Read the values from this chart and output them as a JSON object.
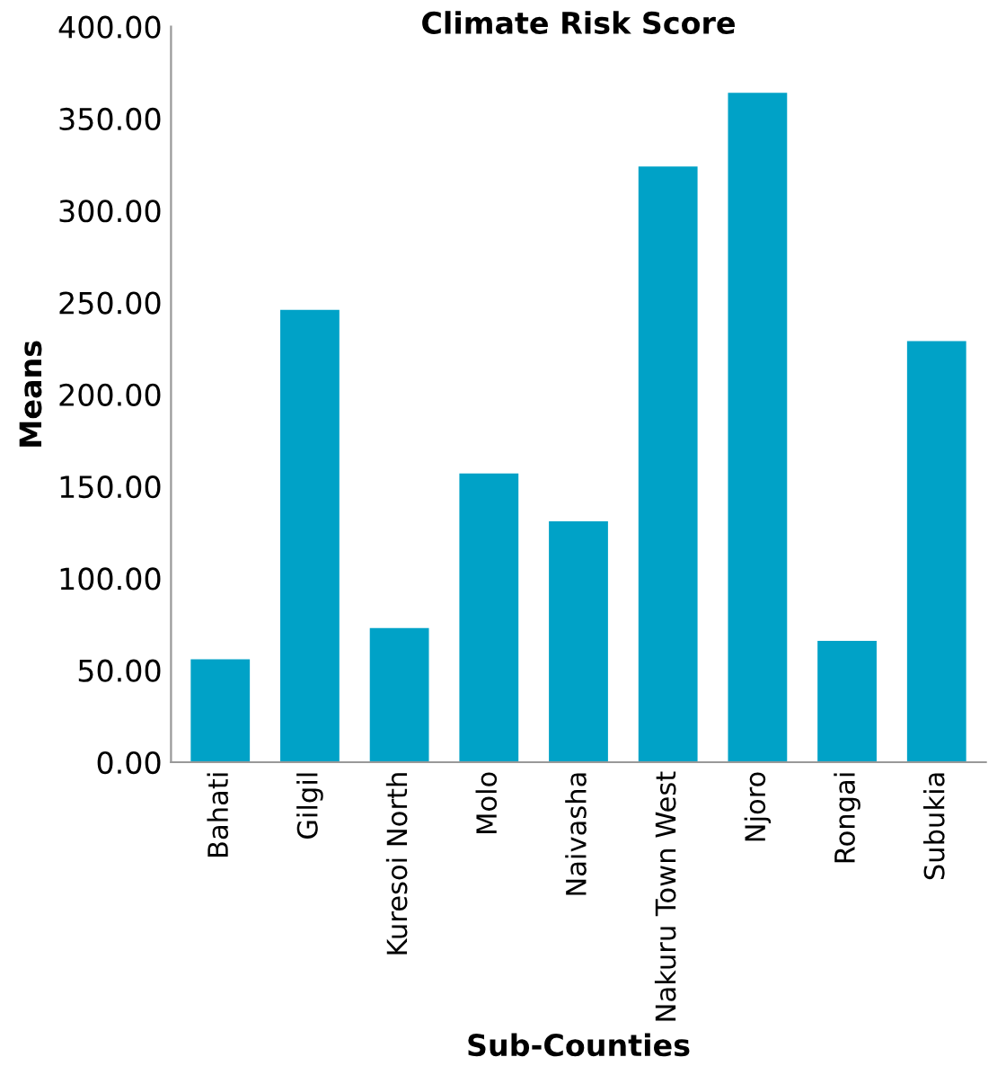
{
  "chart_data": {
    "type": "bar",
    "title": "Climate Risk Score",
    "xlabel": "Sub-Counties",
    "ylabel": "Means",
    "categories": [
      "Bahati",
      "Gilgil",
      "Kuresoi North",
      "Molo",
      "Naivasha",
      "Nakuru Town West",
      "Njoro",
      "Rongai",
      "Subukia"
    ],
    "values": [
      56,
      246,
      73,
      157,
      131,
      324,
      364,
      66,
      229
    ],
    "color": "#00a2c7",
    "ylim": [
      0,
      400
    ],
    "yticks": [
      {
        "value": 0,
        "label": "0.00"
      },
      {
        "value": 50,
        "label": "50.00"
      },
      {
        "value": 100,
        "label": "100.00"
      },
      {
        "value": 150,
        "label": "150.00"
      },
      {
        "value": 200,
        "label": "200.00"
      },
      {
        "value": 250,
        "label": "250.00"
      },
      {
        "value": 300,
        "label": "300.00"
      },
      {
        "value": 350,
        "label": "350.00"
      },
      {
        "value": 400,
        "label": "400.00"
      }
    ],
    "grid": false
  }
}
